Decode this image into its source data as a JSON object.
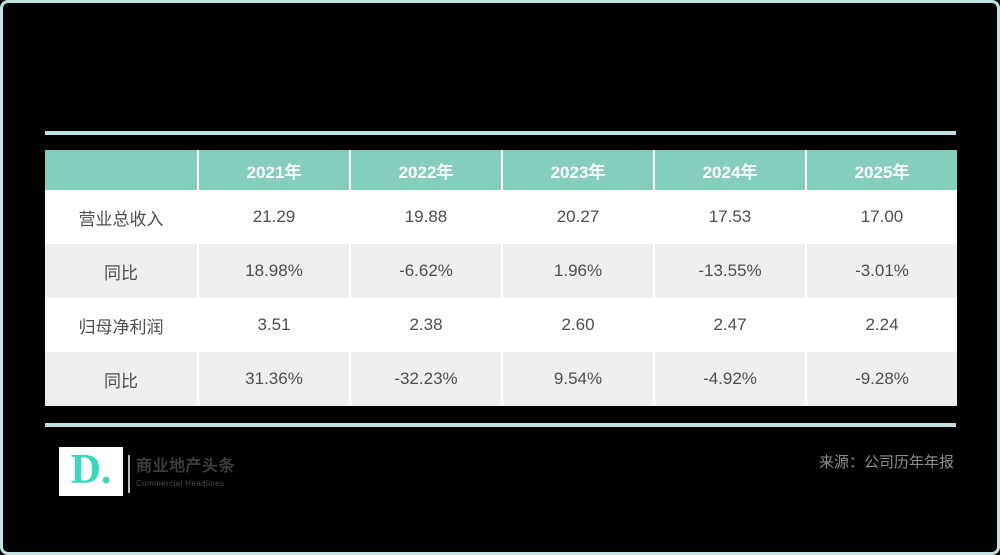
{
  "colors": {
    "frame_border": "#c3e2e4",
    "divider": "#bedfe3",
    "header_bg": "#85cebe",
    "header_text": "#ffffff",
    "row_alt_bg": "#efefef",
    "body_text": "#4e4e4e",
    "logo_teal": "#35d9be",
    "background": "#000000"
  },
  "table": {
    "columns": [
      "2021年",
      "2022年",
      "2023年",
      "2024年",
      "2025年"
    ],
    "rows": [
      {
        "label": "营业总收入",
        "values": [
          "21.29",
          "19.88",
          "20.27",
          "17.53",
          "17.00"
        ]
      },
      {
        "label": "同比",
        "values": [
          "18.98%",
          "-6.62%",
          "1.96%",
          "-13.55%",
          "-3.01%"
        ]
      },
      {
        "label": "归母净利润",
        "values": [
          "3.51",
          "2.38",
          "2.60",
          "2.47",
          "2.24"
        ]
      },
      {
        "label": "同比",
        "values": [
          "31.36%",
          "-32.23%",
          "9.54%",
          "-4.92%",
          "-9.28%"
        ]
      }
    ]
  },
  "chart_data": {
    "type": "table",
    "categories": [
      "2021年",
      "2022年",
      "2023年",
      "2024年",
      "2025年"
    ],
    "series": [
      {
        "name": "营业总收入",
        "values": [
          21.29,
          19.88,
          20.27,
          17.53,
          17.0
        ]
      },
      {
        "name": "同比(营业总收入)",
        "values": [
          "18.98%",
          "-6.62%",
          "1.96%",
          "-13.55%",
          "-3.01%"
        ]
      },
      {
        "name": "归母净利润",
        "values": [
          3.51,
          2.38,
          2.6,
          2.47,
          2.24
        ]
      },
      {
        "name": "同比(归母净利润)",
        "values": [
          "31.36%",
          "-32.23%",
          "9.54%",
          "-4.92%",
          "-9.28%"
        ]
      }
    ],
    "title": "",
    "legend_position": "none",
    "grid": false
  },
  "footer": {
    "logo_letter": "D.",
    "brand_cn": "商业地产头条",
    "brand_en": "Commercial Headlines",
    "source": "来源：公司历年年报"
  }
}
